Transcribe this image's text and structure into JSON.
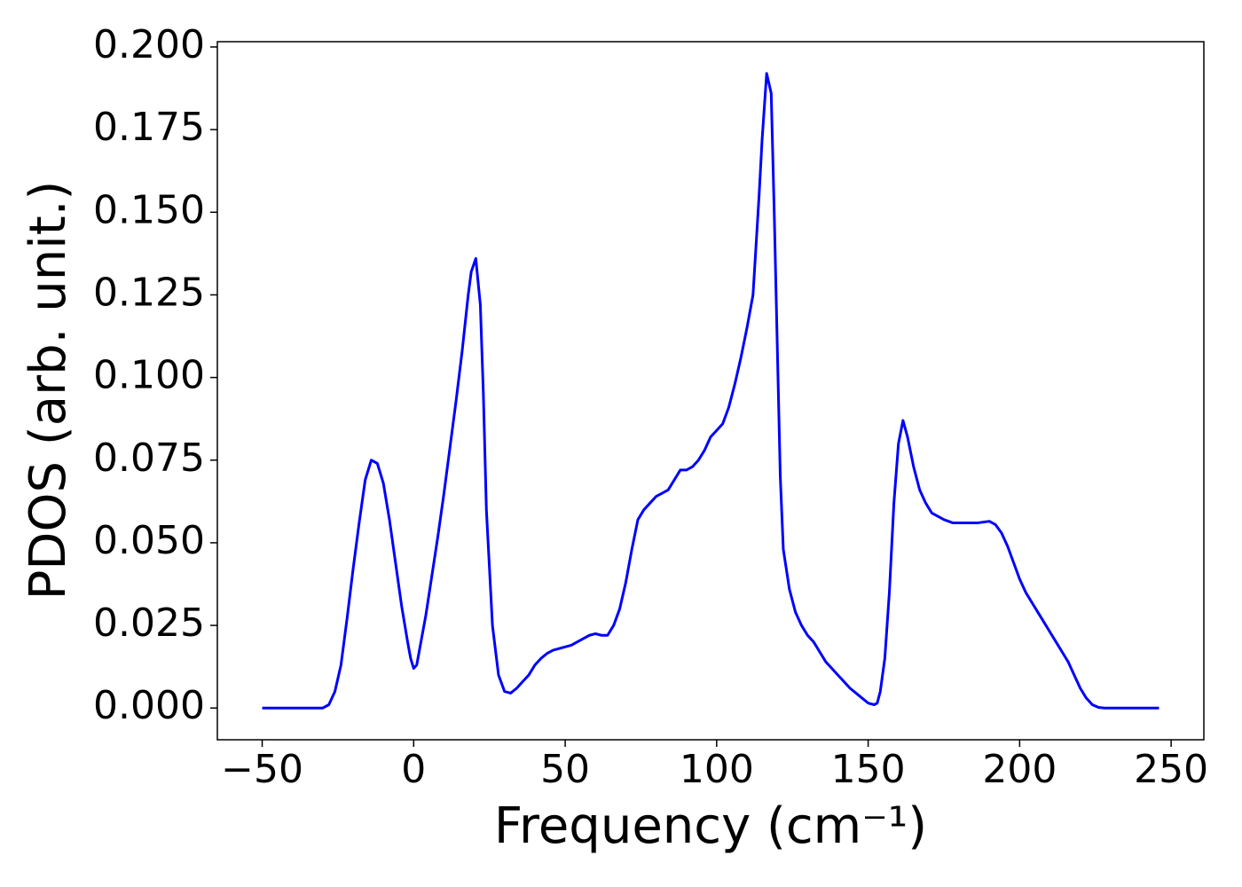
{
  "chart_data": {
    "type": "line",
    "x_label": "Frequency (cm⁻¹)",
    "y_label": "PDOS (arb. unit.)",
    "xlim": [
      -64.8,
      260.8
    ],
    "ylim": [
      -0.0096,
      0.2016
    ],
    "xticks": [
      {
        "value": -50,
        "label": "−50"
      },
      0,
      50,
      100,
      150,
      200,
      250
    ],
    "yticks": [
      {
        "value": 0,
        "label": "0.000"
      },
      {
        "value": 0.025,
        "label": "0.025"
      },
      {
        "value": 0.05,
        "label": "0.050"
      },
      {
        "value": 0.075,
        "label": "0.075"
      },
      {
        "value": 0.1,
        "label": "0.100"
      },
      {
        "value": 0.125,
        "label": "0.125"
      },
      {
        "value": 0.15,
        "label": "0.150"
      },
      {
        "value": 0.175,
        "label": "0.175"
      },
      {
        "value": 0.2,
        "label": "0.200"
      }
    ],
    "grid": false,
    "series": [
      {
        "color": "#0000ff",
        "x": [
          -50,
          -30,
          -28,
          -26,
          -24,
          -22,
          -20,
          -18,
          -16,
          -14,
          -12,
          -10,
          -8,
          -6,
          -4,
          -2,
          -1,
          0,
          1,
          2,
          4,
          6,
          8,
          10,
          12,
          14,
          16,
          18,
          19,
          20.5,
          22,
          23,
          24,
          26,
          28,
          30,
          32,
          34,
          36,
          38,
          40,
          42,
          44,
          46,
          48,
          50,
          52,
          54,
          56,
          58,
          60,
          62,
          64,
          66,
          68,
          70,
          72,
          74,
          76,
          78,
          80,
          82,
          84,
          86,
          88,
          90,
          92,
          94,
          96,
          98,
          100,
          102,
          104,
          106,
          108,
          110,
          112,
          113,
          114,
          115,
          116.5,
          118,
          119,
          120,
          121,
          122,
          124,
          126,
          128,
          130,
          132,
          134,
          136,
          138,
          140,
          142,
          144,
          146,
          148,
          150,
          152,
          153,
          154,
          155.5,
          157,
          158.5,
          160,
          161.5,
          163,
          165,
          167,
          169,
          171,
          173,
          175,
          178,
          182,
          186,
          190,
          192,
          194,
          196,
          198,
          200,
          202,
          204,
          206,
          208,
          210,
          212,
          214,
          216,
          218,
          220,
          222,
          224,
          226,
          228,
          246
        ],
        "values": [
          0,
          0,
          0.001,
          0.005,
          0.013,
          0.027,
          0.042,
          0.056,
          0.069,
          0.075,
          0.074,
          0.068,
          0.057,
          0.044,
          0.031,
          0.02,
          0.015,
          0.012,
          0.013,
          0.018,
          0.028,
          0.04,
          0.052,
          0.065,
          0.079,
          0.093,
          0.108,
          0.125,
          0.132,
          0.136,
          0.122,
          0.095,
          0.06,
          0.025,
          0.01,
          0.005,
          0.0045,
          0.006,
          0.008,
          0.01,
          0.013,
          0.015,
          0.0165,
          0.0175,
          0.018,
          0.0185,
          0.019,
          0.02,
          0.021,
          0.022,
          0.0225,
          0.022,
          0.022,
          0.025,
          0.03,
          0.038,
          0.048,
          0.057,
          0.06,
          0.062,
          0.064,
          0.065,
          0.066,
          0.069,
          0.072,
          0.072,
          0.073,
          0.075,
          0.078,
          0.082,
          0.084,
          0.086,
          0.091,
          0.098,
          0.106,
          0.115,
          0.125,
          0.14,
          0.155,
          0.172,
          0.192,
          0.186,
          0.15,
          0.11,
          0.07,
          0.048,
          0.036,
          0.029,
          0.025,
          0.022,
          0.02,
          0.017,
          0.014,
          0.012,
          0.01,
          0.008,
          0.006,
          0.0045,
          0.003,
          0.0015,
          0.001,
          0.0015,
          0.005,
          0.015,
          0.035,
          0.062,
          0.08,
          0.087,
          0.082,
          0.073,
          0.066,
          0.062,
          0.059,
          0.058,
          0.057,
          0.056,
          0.056,
          0.056,
          0.0565,
          0.0555,
          0.053,
          0.049,
          0.044,
          0.039,
          0.035,
          0.032,
          0.029,
          0.026,
          0.023,
          0.02,
          0.017,
          0.014,
          0.01,
          0.006,
          0.003,
          0.001,
          0.0002,
          0,
          0
        ]
      }
    ]
  }
}
